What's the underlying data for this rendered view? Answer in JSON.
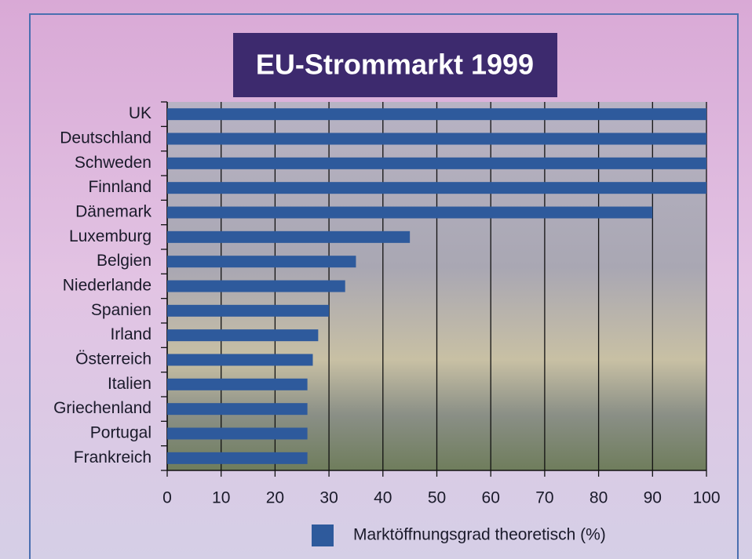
{
  "chart_data": {
    "type": "bar",
    "title": "EU-Strommarkt 1999",
    "categories": [
      "UK",
      "Deutschland",
      "Schweden",
      "Finnland",
      "Dänemark",
      "Luxemburg",
      "Belgien",
      "Niederlande",
      "Spanien",
      "Irland",
      "Österreich",
      "Italien",
      "Griechenland",
      "Portugal",
      "Frankreich"
    ],
    "series": [
      {
        "name": "Marktöffnungsgrad theoretisch (%)",
        "color": "#2e5a9c",
        "values": [
          100,
          100,
          100,
          100,
          90,
          45,
          35,
          33,
          30,
          28,
          27,
          26,
          26,
          26,
          26
        ]
      }
    ],
    "xlim": [
      0,
      100
    ],
    "xticks": [
      0,
      10,
      20,
      30,
      40,
      50,
      60,
      70,
      80,
      90,
      100
    ],
    "grid": true
  }
}
